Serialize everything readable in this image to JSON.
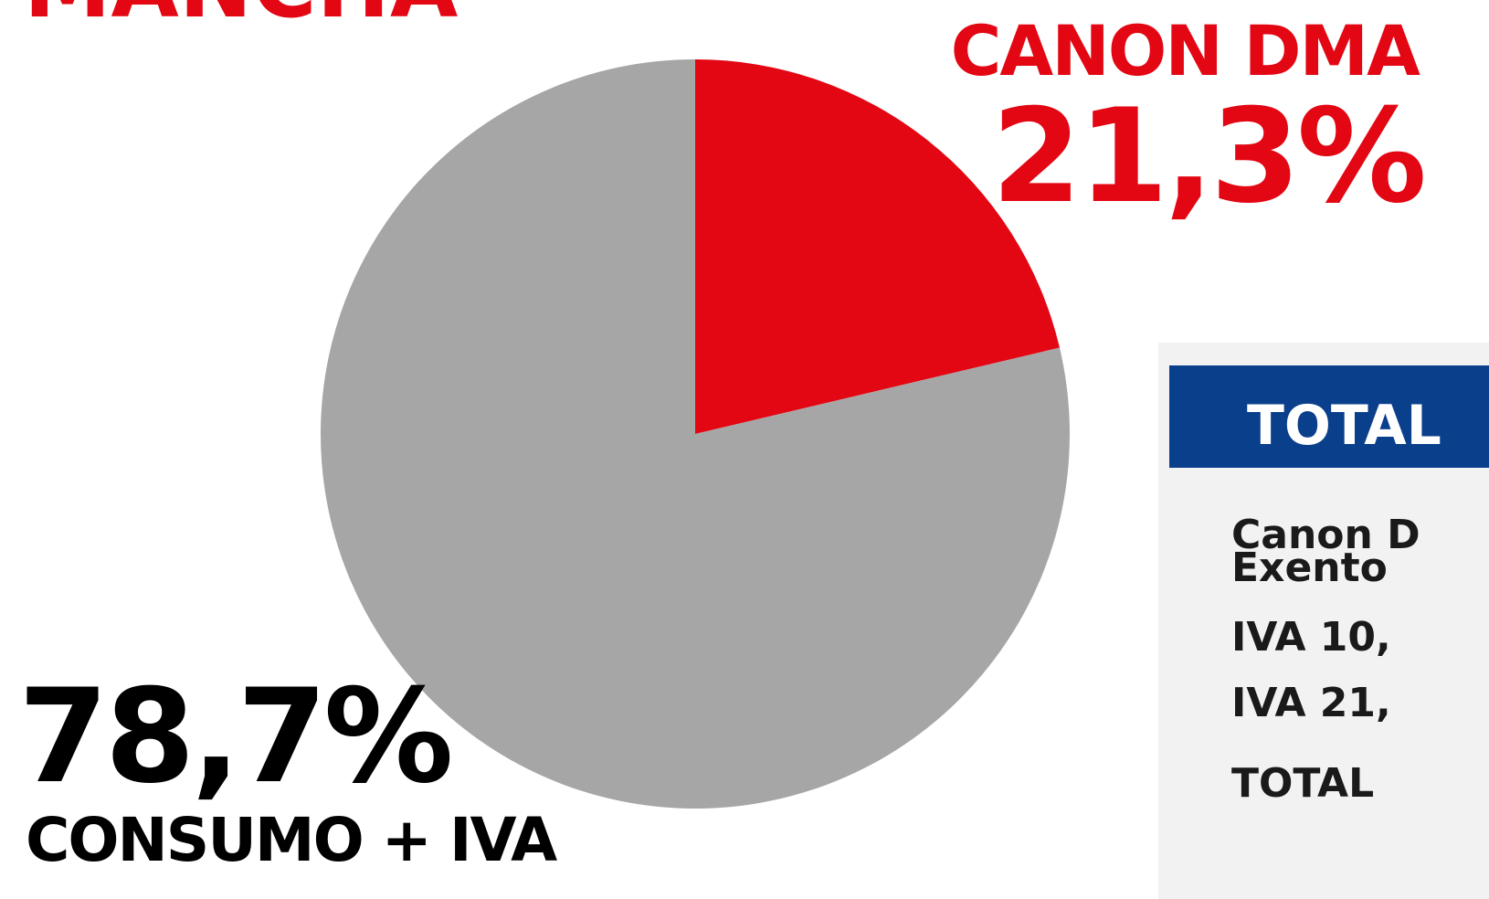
{
  "chart_data": {
    "type": "pie",
    "title": "MANCHA",
    "categories": [
      "CANON DMA",
      "CONSUMO + IVA"
    ],
    "values": [
      21.3,
      78.7
    ],
    "value_labels": [
      "21,3%",
      "78,7%"
    ],
    "colors": [
      "#e30613",
      "#a6a6a6"
    ]
  },
  "table": {
    "header": "TOTAL",
    "rows": [
      "Canon D",
      "Exento",
      "IVA 10,",
      "IVA 21,",
      "TOTAL"
    ]
  }
}
